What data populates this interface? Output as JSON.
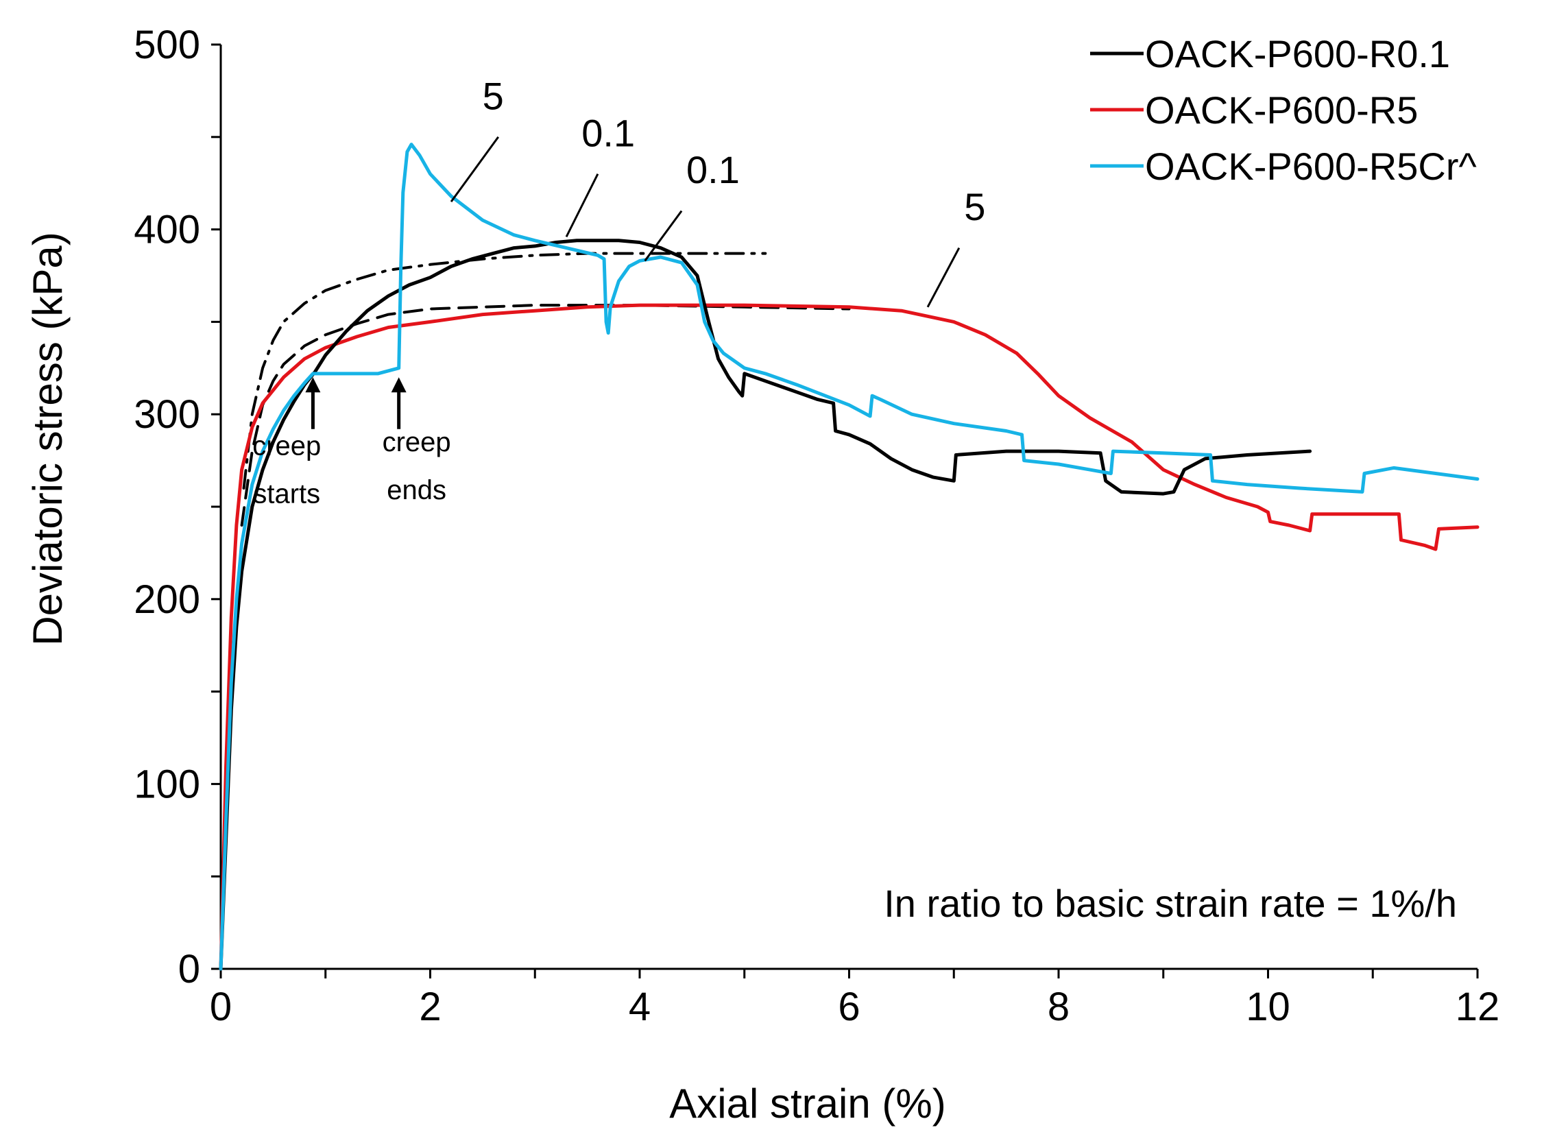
{
  "chart_data": {
    "type": "line",
    "xlabel": "Axial strain (%)",
    "ylabel": "Deviatoric stress (kPa)",
    "xlim": [
      0,
      12
    ],
    "ylim": [
      0,
      500
    ],
    "x_ticks": [
      "0",
      "2",
      "4",
      "6",
      "8",
      "10",
      "12"
    ],
    "y_ticks": [
      "0",
      "100",
      "200",
      "300",
      "400",
      "500"
    ],
    "legend_position": "top-right",
    "note": "In ratio to basic strain rate = 1%/h",
    "series": [
      {
        "name": "OACK-P600-R0.1",
        "color": "#000000",
        "points": [
          [
            0,
            0
          ],
          [
            0.05,
            70
          ],
          [
            0.1,
            140
          ],
          [
            0.15,
            185
          ],
          [
            0.2,
            215
          ],
          [
            0.3,
            250
          ],
          [
            0.4,
            270
          ],
          [
            0.5,
            285
          ],
          [
            0.6,
            297
          ],
          [
            0.7,
            307
          ],
          [
            0.8,
            316
          ],
          [
            0.9,
            323
          ],
          [
            1.0,
            332
          ],
          [
            1.2,
            345
          ],
          [
            1.4,
            356
          ],
          [
            1.6,
            364
          ],
          [
            1.8,
            370
          ],
          [
            2.0,
            374
          ],
          [
            2.2,
            380
          ],
          [
            2.4,
            384
          ],
          [
            2.6,
            387
          ],
          [
            2.8,
            390
          ],
          [
            3.0,
            391
          ],
          [
            3.2,
            393
          ],
          [
            3.4,
            394
          ],
          [
            3.6,
            394
          ],
          [
            3.8,
            394
          ],
          [
            4.0,
            393
          ],
          [
            4.2,
            390
          ],
          [
            4.4,
            385
          ],
          [
            4.55,
            375
          ],
          [
            4.65,
            352
          ],
          [
            4.75,
            330
          ],
          [
            4.85,
            320
          ],
          [
            4.95,
            312
          ],
          [
            4.98,
            310
          ],
          [
            5.0,
            322
          ],
          [
            5.2,
            318
          ],
          [
            5.5,
            312
          ],
          [
            5.7,
            308
          ],
          [
            5.85,
            306
          ],
          [
            5.87,
            291
          ],
          [
            6.0,
            289
          ],
          [
            6.2,
            284
          ],
          [
            6.4,
            276
          ],
          [
            6.6,
            270
          ],
          [
            6.8,
            266
          ],
          [
            7.0,
            264
          ],
          [
            7.02,
            278
          ],
          [
            7.5,
            280
          ],
          [
            8.0,
            280
          ],
          [
            8.4,
            279
          ],
          [
            8.45,
            264
          ],
          [
            8.6,
            258
          ],
          [
            9.0,
            257
          ],
          [
            9.1,
            258
          ],
          [
            9.2,
            270
          ],
          [
            9.4,
            276
          ],
          [
            9.8,
            278
          ],
          [
            10.4,
            280
          ]
        ]
      },
      {
        "name": "OACK-P600-R5",
        "color": "#e3141b",
        "points": [
          [
            0,
            0
          ],
          [
            0.05,
            110
          ],
          [
            0.1,
            190
          ],
          [
            0.15,
            240
          ],
          [
            0.2,
            270
          ],
          [
            0.3,
            293
          ],
          [
            0.4,
            306
          ],
          [
            0.6,
            320
          ],
          [
            0.8,
            330
          ],
          [
            1.0,
            336
          ],
          [
            1.3,
            342
          ],
          [
            1.6,
            347
          ],
          [
            2.0,
            350
          ],
          [
            2.5,
            354
          ],
          [
            3.0,
            356
          ],
          [
            3.5,
            358
          ],
          [
            4.0,
            359
          ],
          [
            5.0,
            359
          ],
          [
            6.0,
            358
          ],
          [
            6.5,
            356
          ],
          [
            7.0,
            350
          ],
          [
            7.3,
            343
          ],
          [
            7.6,
            333
          ],
          [
            7.8,
            322
          ],
          [
            8.0,
            310
          ],
          [
            8.3,
            298
          ],
          [
            8.7,
            285
          ],
          [
            9.0,
            270
          ],
          [
            9.3,
            262
          ],
          [
            9.6,
            255
          ],
          [
            9.9,
            250
          ],
          [
            10.0,
            247
          ],
          [
            10.02,
            242
          ],
          [
            10.2,
            240
          ],
          [
            10.4,
            237
          ],
          [
            10.42,
            246
          ],
          [
            10.8,
            246
          ],
          [
            11.25,
            246
          ],
          [
            11.27,
            232
          ],
          [
            11.5,
            229
          ],
          [
            11.6,
            227
          ],
          [
            11.63,
            238
          ],
          [
            12.0,
            239
          ]
        ]
      },
      {
        "name": "OACK-P600-R5Cr^",
        "color": "#17b3e6",
        "points": [
          [
            0,
            0
          ],
          [
            0.05,
            80
          ],
          [
            0.1,
            155
          ],
          [
            0.15,
            200
          ],
          [
            0.2,
            230
          ],
          [
            0.3,
            262
          ],
          [
            0.4,
            280
          ],
          [
            0.5,
            292
          ],
          [
            0.6,
            302
          ],
          [
            0.7,
            310
          ],
          [
            0.8,
            317
          ],
          [
            0.88,
            322
          ],
          [
            1.0,
            322
          ],
          [
            1.3,
            322
          ],
          [
            1.5,
            322
          ],
          [
            1.7,
            325
          ],
          [
            1.72,
            380
          ],
          [
            1.74,
            420
          ],
          [
            1.78,
            442
          ],
          [
            1.82,
            446
          ],
          [
            1.9,
            440
          ],
          [
            2.0,
            430
          ],
          [
            2.2,
            418
          ],
          [
            2.5,
            405
          ],
          [
            2.8,
            397
          ],
          [
            3.0,
            394
          ],
          [
            3.3,
            390
          ],
          [
            3.6,
            386
          ],
          [
            3.66,
            384
          ],
          [
            3.68,
            350
          ],
          [
            3.7,
            344
          ],
          [
            3.72,
            358
          ],
          [
            3.8,
            372
          ],
          [
            3.9,
            380
          ],
          [
            4.0,
            383
          ],
          [
            4.2,
            385
          ],
          [
            4.4,
            382
          ],
          [
            4.55,
            370
          ],
          [
            4.62,
            350
          ],
          [
            4.7,
            340
          ],
          [
            4.8,
            333
          ],
          [
            5.0,
            325
          ],
          [
            5.2,
            322
          ],
          [
            5.5,
            316
          ],
          [
            6.0,
            305
          ],
          [
            6.2,
            299
          ],
          [
            6.22,
            310
          ],
          [
            6.3,
            308
          ],
          [
            6.6,
            300
          ],
          [
            7.0,
            295
          ],
          [
            7.5,
            291
          ],
          [
            7.65,
            289
          ],
          [
            7.67,
            275
          ],
          [
            8.0,
            273
          ],
          [
            8.3,
            270
          ],
          [
            8.5,
            268
          ],
          [
            8.52,
            280
          ],
          [
            9.0,
            279
          ],
          [
            9.45,
            278
          ],
          [
            9.47,
            264
          ],
          [
            9.8,
            262
          ],
          [
            10.3,
            260
          ],
          [
            10.9,
            258
          ],
          [
            10.92,
            268
          ],
          [
            11.2,
            271
          ],
          [
            11.6,
            268
          ],
          [
            12.0,
            265
          ]
        ]
      },
      {
        "name": "",
        "style": "dash-dot",
        "color": "#000000",
        "points": [
          [
            0.22,
            260
          ],
          [
            0.3,
            300
          ],
          [
            0.4,
            325
          ],
          [
            0.5,
            340
          ],
          [
            0.6,
            350
          ],
          [
            0.8,
            360
          ],
          [
            1.0,
            367
          ],
          [
            1.3,
            373
          ],
          [
            1.6,
            378
          ],
          [
            2.0,
            381
          ],
          [
            2.5,
            384
          ],
          [
            3.0,
            386
          ],
          [
            3.5,
            387
          ],
          [
            4.0,
            387
          ],
          [
            4.5,
            387
          ],
          [
            5.2,
            387
          ]
        ]
      },
      {
        "name": "",
        "style": "dashed",
        "color": "#000000",
        "points": [
          [
            0.2,
            240
          ],
          [
            0.3,
            280
          ],
          [
            0.4,
            305
          ],
          [
            0.5,
            318
          ],
          [
            0.6,
            327
          ],
          [
            0.8,
            337
          ],
          [
            1.0,
            343
          ],
          [
            1.3,
            349
          ],
          [
            1.6,
            354
          ],
          [
            2.0,
            357
          ],
          [
            2.5,
            358
          ],
          [
            3.0,
            359
          ],
          [
            4.0,
            359
          ],
          [
            5.0,
            358
          ],
          [
            6.0,
            357
          ]
        ]
      }
    ],
    "annotations": [
      {
        "text": "5",
        "x": 2.6,
        "y": 465,
        "leader": [
          [
            2.2,
            415
          ],
          [
            2.65,
            450
          ]
        ]
      },
      {
        "text": "0.1",
        "x": 3.7,
        "y": 445,
        "leader": [
          [
            3.3,
            396
          ],
          [
            3.6,
            430
          ]
        ]
      },
      {
        "text": "0.1",
        "x": 4.7,
        "y": 425,
        "leader": [
          [
            4.05,
            383
          ],
          [
            4.4,
            410
          ]
        ]
      },
      {
        "text": "5",
        "x": 7.2,
        "y": 405,
        "leader": [
          [
            6.75,
            358
          ],
          [
            7.05,
            390
          ]
        ]
      },
      {
        "text": "creep",
        "x": 0.63,
        "y": 278,
        "small": true
      },
      {
        "text": "starts",
        "x": 0.63,
        "y": 252,
        "small": true
      },
      {
        "text": "creep",
        "x": 1.87,
        "y": 280,
        "small": true
      },
      {
        "text": "ends",
        "x": 1.87,
        "y": 254,
        "small": true
      }
    ],
    "arrows": [
      {
        "x": 0.88,
        "y_from": 292,
        "y_to": 320
      },
      {
        "x": 1.7,
        "y_from": 292,
        "y_to": 320
      }
    ]
  }
}
